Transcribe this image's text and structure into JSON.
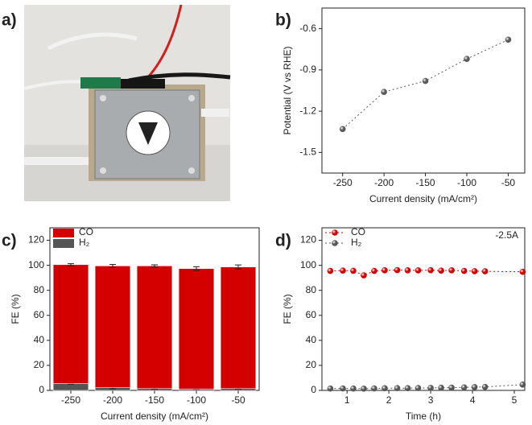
{
  "panel_labels": [
    "a)",
    "b)",
    "c)",
    "d)"
  ],
  "chart_data": [
    {
      "type": "line",
      "xlabel": "Current density (mA/cm²)",
      "ylabel": "Potential (V vs RHE)",
      "x": [
        -250,
        -200,
        -150,
        -100,
        -50
      ],
      "series": [
        {
          "name": "Potential",
          "color": "#5a5a5a",
          "values": [
            -1.33,
            -1.06,
            -0.98,
            -0.82,
            -0.68
          ]
        }
      ],
      "xlim": [
        -275,
        -30
      ],
      "xticks": [
        -250,
        -200,
        -150,
        -100,
        -50
      ],
      "ylim": [
        -1.65,
        -0.45
      ],
      "yticks": [
        -1.5,
        -1.2,
        -0.9,
        -0.6
      ],
      "legend": false
    },
    {
      "type": "bar",
      "stacked": true,
      "xlabel": "Current density (mA/cm²)",
      "ylabel": "FE (%)",
      "categories": [
        "-250",
        "-200",
        "-150",
        "-100",
        "-50"
      ],
      "series": [
        {
          "name": "H₂",
          "color": "#555555",
          "values": [
            5.5,
            2.2,
            1.5,
            1.2,
            1.5
          ],
          "errors": [
            0.5,
            1.0,
            0.5,
            0.5,
            0.5
          ]
        },
        {
          "name": "CO",
          "color": "#d40000",
          "values": [
            95,
            97.3,
            98,
            96.2,
            97.2
          ],
          "errors": [
            0.8,
            1.2,
            0.9,
            1.5,
            1.6
          ]
        }
      ],
      "ylim": [
        0,
        130
      ],
      "yticks": [
        0,
        20,
        40,
        60,
        80,
        100,
        120
      ],
      "legend": "upper left"
    },
    {
      "type": "line",
      "xlabel": "Time (h)",
      "ylabel": "FE (%)",
      "annotation": "-2.5A",
      "x": [
        0.6,
        0.9,
        1.15,
        1.4,
        1.65,
        1.9,
        2.2,
        2.45,
        2.7,
        3.0,
        3.25,
        3.5,
        3.8,
        4.05,
        4.3,
        5.2
      ],
      "series": [
        {
          "name": "CO",
          "color": "#d40000",
          "values": [
            95.5,
            95.8,
            95.6,
            92,
            95.5,
            96,
            96.2,
            96,
            95.9,
            96.1,
            95.8,
            96,
            95.5,
            95.3,
            95.2,
            94.8
          ]
        },
        {
          "name": "H₂",
          "color": "#555555",
          "values": [
            1.5,
            1.6,
            1.5,
            1.4,
            1.6,
            1.7,
            1.8,
            1.8,
            1.9,
            2.0,
            2.1,
            2.2,
            2.4,
            2.6,
            2.8,
            4.6
          ]
        }
      ],
      "xlim": [
        0.4,
        5.25
      ],
      "xticks": [
        1,
        2,
        3,
        4,
        5
      ],
      "ylim": [
        0,
        130
      ],
      "yticks": [
        0,
        20,
        40,
        60,
        80,
        100,
        120
      ],
      "legend": "upper left"
    }
  ]
}
